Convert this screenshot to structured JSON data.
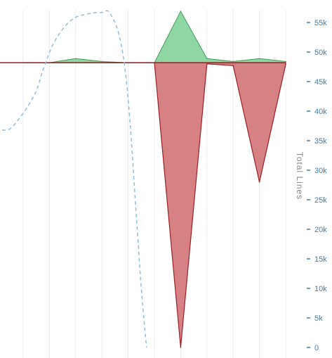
{
  "chart_data": {
    "type": "area",
    "x": [
      0,
      1,
      2,
      3,
      4,
      5,
      6,
      7,
      8,
      9,
      10
    ],
    "xlim": [
      -0.8,
      10.4
    ],
    "yaxis": {
      "label": "Total Lines",
      "position": "right",
      "ylim": [
        0,
        55000
      ],
      "ticks": [
        0,
        5000,
        10000,
        15000,
        20000,
        25000,
        30000,
        35000,
        40000,
        45000,
        50000,
        55000
      ],
      "tick_labels": [
        "0",
        "5k",
        "10k",
        "15k",
        "20k",
        "25k",
        "30k",
        "35k",
        "40k",
        "45k",
        "50k",
        "55k"
      ]
    },
    "baseline": 48200,
    "series": [
      {
        "role": "additions",
        "color": "#8fd6a3",
        "stroke": "#3f9f5a",
        "values": [
          0,
          0,
          700,
          200,
          0,
          0,
          8700,
          700,
          200,
          700,
          200
        ]
      },
      {
        "role": "deletions",
        "color": "#d68285",
        "stroke": "#9b1f24",
        "values": [
          0,
          0,
          0,
          0,
          0,
          0,
          -48200,
          -200,
          -500,
          -20200,
          -300
        ]
      },
      {
        "role": "total-lines",
        "style": "dashed",
        "color": "#8bbfe3",
        "points": [
          [
            -0.8,
            36800
          ],
          [
            -0.4,
            37400
          ],
          [
            0.4,
            42500
          ],
          [
            0.8,
            47500
          ],
          [
            1.2,
            51800
          ],
          [
            1.8,
            55300
          ],
          [
            2.4,
            56400
          ],
          [
            3.0,
            56700
          ],
          [
            3.3,
            56600
          ],
          [
            3.7,
            52000
          ],
          [
            4.0,
            42000
          ],
          [
            4.3,
            23000
          ],
          [
            4.5,
            10000
          ],
          [
            4.7,
            0
          ]
        ]
      }
    ],
    "grid": true
  }
}
